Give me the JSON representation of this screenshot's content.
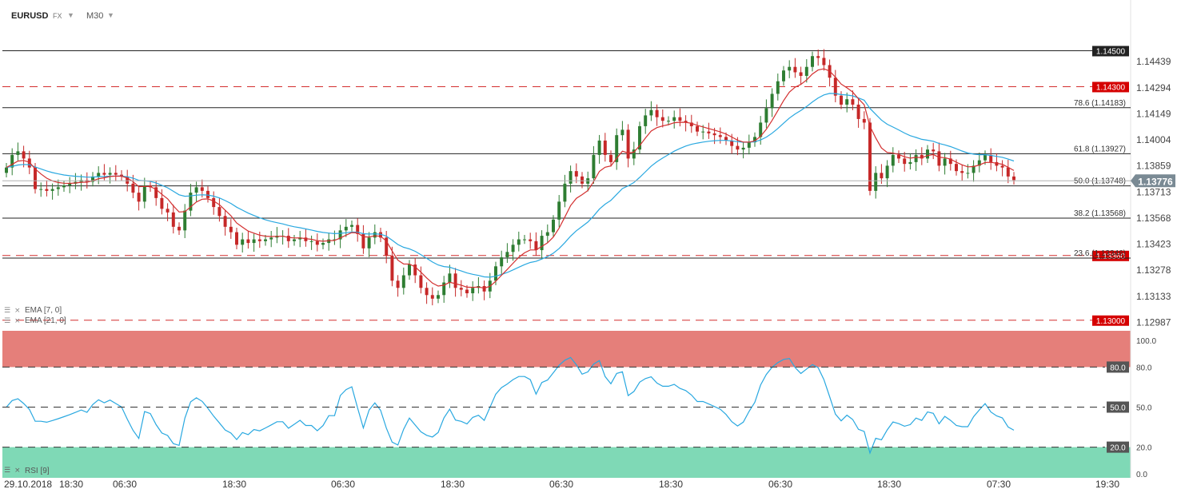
{
  "header": {
    "symbol": "EURUSD",
    "market": "FX",
    "timeframe": "M30",
    "dropdown_glyph": "▼"
  },
  "colors": {
    "up_candle": "#2e7d32",
    "down_candle": "#c62828",
    "ema_fast": "#d32f2f",
    "ema_slow": "#29a8e0",
    "rsi_line": "#29a8e0",
    "overbought_zone": "#e57f7a",
    "oversold_zone": "#7fd9b6",
    "support_label_bg": "#d50000",
    "level_label_bg": "#222222",
    "current_price_bg": "#7a8a94"
  },
  "chart_data": [
    {
      "type": "candlestick",
      "title": "EURUSD",
      "price_axis_ticks": [
        "1.14439",
        "1.14294",
        "1.14149",
        "1.14004",
        "1.13859",
        "1.13713",
        "1.13568",
        "1.13423",
        "1.13278",
        "1.13133",
        "1.12987"
      ],
      "ylim": [
        1.1295,
        1.146
      ],
      "time_axis_labels": [
        "29.10.2018",
        "18:30",
        "06:30",
        "18:30",
        "06:30",
        "18:30",
        "06:30",
        "18:30",
        "06:30",
        "18:30",
        "07:30",
        "19:30"
      ],
      "current_price": "1.13776",
      "horizontal_levels": [
        {
          "price": 1.145,
          "label": "1.14500",
          "style": "solid",
          "badge": "dark"
        },
        {
          "price": 1.143,
          "label": "1.14300",
          "style": "dashed",
          "badge": "red"
        },
        {
          "price": 1.1336,
          "label": "1.13360",
          "style": "dashed",
          "badge": "red"
        },
        {
          "price": 1.13,
          "label": "1.13000",
          "style": "dashed",
          "badge": "red"
        }
      ],
      "fibonacci_levels": [
        {
          "price": 1.14183,
          "label": "78.6 (1.14183)"
        },
        {
          "price": 1.13927,
          "label": "61.8 (1.13927)"
        },
        {
          "price": 1.13748,
          "label": "50.0 (1.13748)"
        },
        {
          "price": 1.13568,
          "label": "38.2 (1.13568)"
        },
        {
          "price": 1.13346,
          "label": "23.6 (1.13346)"
        }
      ],
      "indicators": [
        "EMA [7, 0]",
        "EMA [21, 0]"
      ],
      "closes": [
        1.1385,
        1.1392,
        1.1394,
        1.139,
        1.1385,
        1.1373,
        1.1373,
        1.1372,
        1.1373,
        1.1374,
        1.1375,
        1.1376,
        1.1377,
        1.1378,
        1.1377,
        1.138,
        1.1382,
        1.1381,
        1.1382,
        1.1381,
        1.138,
        1.1376,
        1.1371,
        1.1366,
        1.1375,
        1.1374,
        1.1368,
        1.1362,
        1.136,
        1.1352,
        1.135,
        1.1361,
        1.1371,
        1.1374,
        1.1372,
        1.1368,
        1.1363,
        1.1358,
        1.1352,
        1.1349,
        1.1342,
        1.1345,
        1.1343,
        1.1345,
        1.1344,
        1.1345,
        1.1346,
        1.1347,
        1.1347,
        1.1344,
        1.1345,
        1.1346,
        1.1344,
        1.1344,
        1.1342,
        1.1343,
        1.1345,
        1.1345,
        1.135,
        1.1352,
        1.1353,
        1.1348,
        1.134,
        1.1346,
        1.1349,
        1.1346,
        1.1336,
        1.1322,
        1.1318,
        1.1325,
        1.1331,
        1.1325,
        1.1318,
        1.1314,
        1.1312,
        1.1314,
        1.1321,
        1.1326,
        1.1318,
        1.1317,
        1.1315,
        1.1318,
        1.1319,
        1.1316,
        1.1322,
        1.133,
        1.1335,
        1.1338,
        1.1342,
        1.1345,
        1.1345,
        1.1344,
        1.1339,
        1.1347,
        1.1349,
        1.1356,
        1.1366,
        1.1376,
        1.1383,
        1.138,
        1.1376,
        1.1379,
        1.1392,
        1.14,
        1.1392,
        1.1388,
        1.1403,
        1.1406,
        1.139,
        1.1395,
        1.1408,
        1.1414,
        1.1417,
        1.1413,
        1.1411,
        1.1411,
        1.1413,
        1.1411,
        1.141,
        1.1408,
        1.1405,
        1.1405,
        1.1404,
        1.1403,
        1.1402,
        1.14,
        1.1397,
        1.1395,
        1.1396,
        1.1399,
        1.1402,
        1.141,
        1.1418,
        1.1426,
        1.1433,
        1.1439,
        1.1441,
        1.1438,
        1.1436,
        1.1441,
        1.1447,
        1.1446,
        1.1442,
        1.1435,
        1.1425,
        1.142,
        1.1423,
        1.142,
        1.1412,
        1.141,
        1.1372,
        1.1382,
        1.1379,
        1.1386,
        1.1392,
        1.139,
        1.1387,
        1.1388,
        1.1392,
        1.139,
        1.1395,
        1.1394,
        1.1386,
        1.139,
        1.1387,
        1.1383,
        1.1382,
        1.1382,
        1.1386,
        1.1389,
        1.1392,
        1.1388,
        1.1386,
        1.1385,
        1.138,
        1.1378
      ]
    },
    {
      "type": "line",
      "title": "RSI [9]",
      "ylim": [
        0,
        100
      ],
      "axis_ticks": [
        "100.0",
        "80.0",
        "50.0",
        "20.0",
        "0.0"
      ],
      "levels": [
        {
          "value": 80,
          "label": "80.0"
        },
        {
          "value": 50,
          "label": "50.0"
        },
        {
          "value": 20,
          "label": "20.0"
        }
      ]
    }
  ]
}
